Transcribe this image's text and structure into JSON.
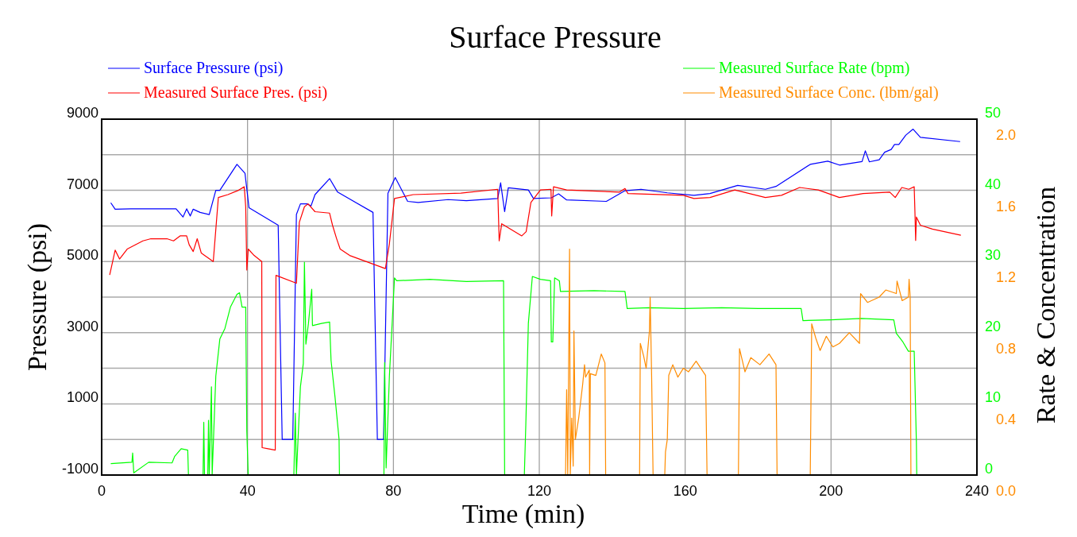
{
  "chart_data": {
    "type": "line",
    "title": "Surface Pressure",
    "xlabel": "Time (min)",
    "ylabel": "Pressure (psi)",
    "y2label": "Rate & Concentration",
    "xlim": [
      0,
      240
    ],
    "xticks": [
      0,
      40,
      80,
      120,
      160,
      200,
      240
    ],
    "ylim": [
      -1000,
      9000
    ],
    "yticks": [
      -1000,
      {
        "value": 0,
        "label": null
      },
      1000,
      {
        "value": 2000,
        "label": null
      },
      3000,
      {
        "value": 4000,
        "label": null
      },
      5000,
      {
        "value": 6000,
        "label": null
      },
      7000,
      {
        "value": 8000,
        "label": null
      },
      9000
    ],
    "y2lim": [
      0,
      50
    ],
    "y2ticks": [
      0,
      10,
      20,
      30,
      40,
      50
    ],
    "y3lim": [
      0,
      2
    ],
    "y3ticks": [
      {
        "value": 0,
        "label": "0.0"
      },
      0.4,
      0.8,
      1.2,
      1.6,
      {
        "value": 2,
        "label": "2.0"
      }
    ],
    "grid": true,
    "legend": "top",
    "line_style": "solid",
    "series": [
      {
        "name": "Surface Pressure (psi)",
        "color": "#0000ff",
        "x": [
          2.5,
          3.7,
          8,
          20.4,
          22.3,
          23.3,
          24.3,
          25.1,
          27,
          29.5,
          31.3,
          32.4,
          37.1,
          39.3,
          40.4,
          48.4,
          49.5,
          52.4,
          53.4,
          54.5,
          56.3,
          57.4,
          58.5,
          62.5,
          64.7,
          74.4,
          75.6,
          77.3,
          78.5,
          80.5,
          83.9,
          86.8,
          95,
          100,
          108.6,
          109.4,
          110.5,
          111.5,
          117,
          118.4,
          123.3,
          125.3,
          127.5,
          138.4,
          143.5,
          147.9,
          155.1,
          162.4,
          166.8,
          174.4,
          182,
          184.9,
          194.3,
          199.1,
          202.3,
          208.5,
          209.4,
          210.5,
          213.2,
          214.7,
          216.5,
          217.4,
          218.6,
          220.5,
          222.5,
          224.5,
          235.4
        ],
        "values": [
          6650,
          6470,
          6480,
          6480,
          6250,
          6480,
          6280,
          6470,
          6380,
          6320,
          7000,
          7000,
          7730,
          7480,
          6510,
          6020,
          0,
          0,
          6320,
          6620,
          6620,
          6560,
          6880,
          7330,
          6950,
          6380,
          0,
          0,
          6920,
          7360,
          6690,
          6660,
          6740,
          6710,
          6770,
          7210,
          6400,
          7070,
          7010,
          6770,
          6790,
          6900,
          6730,
          6690,
          6990,
          7030,
          6930,
          6860,
          6910,
          7140,
          7030,
          7110,
          7730,
          7820,
          7710,
          7810,
          8110,
          7800,
          7860,
          8070,
          8150,
          8290,
          8290,
          8550,
          8720,
          8490,
          8370
        ]
      },
      {
        "name": "Measured Surface Pres. (psi)",
        "color": "#ff0000",
        "x": [
          2.2,
          3.7,
          4.9,
          7,
          11.3,
          13.5,
          17.9,
          19.7,
          21.5,
          23.3,
          24,
          25.1,
          26.2,
          27.3,
          30.6,
          32,
          34.6,
          37.5,
          39.1,
          39.5,
          39.8,
          40.2,
          41.8,
          43.9,
          44,
          45.6,
          47.6,
          47.8,
          53.4,
          54.2,
          55.6,
          56.6,
          58.5,
          62.5,
          63.3,
          64.4,
          65.4,
          68,
          77.8,
          78.9,
          80.3,
          85.4,
          98.5,
          108.6,
          109,
          109.7,
          115.2,
          116.4,
          117.7,
          120.3,
          123.2,
          123.4,
          123.9,
          127.5,
          142,
          143.5,
          144.3,
          159.5,
          162.4,
          166.8,
          173.6,
          182,
          186.4,
          191.4,
          196.5,
          202.3,
          208.8,
          216.1,
          217.6,
          219.4,
          221.3,
          222.8,
          223,
          223.2,
          223.4,
          224.5,
          227.8,
          235.6
        ],
        "values": [
          4620,
          5320,
          5070,
          5350,
          5580,
          5640,
          5640,
          5580,
          5720,
          5720,
          5470,
          5280,
          5640,
          5240,
          5000,
          6800,
          6880,
          7000,
          7100,
          6540,
          4760,
          5350,
          5170,
          5000,
          -230,
          -260,
          -300,
          4610,
          4390,
          6100,
          6540,
          6620,
          6400,
          6360,
          6020,
          5650,
          5350,
          5170,
          4800,
          5500,
          6770,
          6880,
          6920,
          7030,
          5580,
          6060,
          5720,
          5840,
          6660,
          7010,
          7030,
          6280,
          7100,
          7010,
          6950,
          7050,
          6910,
          6860,
          6770,
          6800,
          7010,
          6800,
          6860,
          7080,
          7010,
          6800,
          6910,
          6950,
          6800,
          7080,
          7030,
          7100,
          6400,
          5590,
          6250,
          6020,
          5910,
          5740
        ]
      },
      {
        "name": "Measured Surface Rate (bpm)",
        "color": "#00ff00",
        "axis": "y2",
        "x": [
          2.5,
          8.3,
          8.5,
          8.8,
          12.9,
          19.3,
          20,
          21.8,
          23.6,
          23.8,
          27.8,
          28,
          28.2,
          29.1,
          29.3,
          29.5,
          30.1,
          30.3,
          31.3,
          32.4,
          33.8,
          35.3,
          37.1,
          37.8,
          38.5,
          39.5,
          39.8,
          40.2,
          52.7,
          53.1,
          53.4,
          54.5,
          55.3,
          55.6,
          56,
          56.7,
          57.6,
          57.8,
          60.3,
          62.5,
          62.9,
          64,
          65.1,
          65.2,
          77.4,
          77.6,
          78,
          78.9,
          80.3,
          80.9,
          90,
          100,
          110.2,
          110.5,
          115.9,
          116.3,
          117,
          118.1,
          120.3,
          123.1,
          123.3,
          123.7,
          124.2,
          125.5,
          125.8,
          135,
          143.5,
          144.1,
          150,
          159.5,
          170,
          180,
          191.8,
          192.3,
          200,
          208.3,
          217.2,
          217.9,
          219.7,
          221.2,
          222.8,
          223,
          223.4,
          223.5
        ],
        "values": [
          1.6,
          1.8,
          3.1,
          0.3,
          1.8,
          1.7,
          2.6,
          3.7,
          3.5,
          0,
          0,
          7.4,
          0,
          0,
          7.7,
          0,
          12.4,
          0,
          13.9,
          19.1,
          20.6,
          23.6,
          25.4,
          25.6,
          23.6,
          23.6,
          6.1,
          0,
          0,
          8.7,
          0,
          12.4,
          15.7,
          29.9,
          18.4,
          21.3,
          26.1,
          21,
          21.3,
          21.5,
          16.1,
          10.9,
          5,
          0,
          0,
          15.8,
          1,
          13.9,
          27.7,
          27.3,
          27.5,
          27.2,
          27.3,
          0,
          0,
          7,
          21.3,
          27.9,
          27.5,
          27.3,
          18.7,
          18.7,
          27.7,
          27.3,
          25.8,
          25.9,
          25.8,
          23.4,
          23.5,
          23.4,
          23.5,
          23.4,
          23.4,
          21.7,
          21.8,
          22,
          21.8,
          19.9,
          18.7,
          17.4,
          17.4,
          13.2,
          4.6,
          0
        ]
      },
      {
        "name": "Measured Surface Conc. (lbm/gal)",
        "color": "#ff8c00",
        "axis": "y3",
        "x": [
          127.2,
          127.5,
          127.8,
          128.3,
          128.5,
          128.9,
          129.3,
          129.5,
          129.9,
          130.8,
          131.9,
          132.4,
          132.7,
          133.7,
          133.8,
          134,
          135.5,
          137,
          138,
          138.2,
          147.5,
          147.7,
          148.6,
          149.3,
          150.2,
          150.4,
          150.8,
          151.2,
          154.4,
          154.6,
          155.1,
          155.5,
          156.6,
          158,
          159.5,
          160.9,
          163,
          165.6,
          166,
          174.6,
          174.9,
          176.4,
          178,
          180.5,
          183,
          184.9,
          185.2,
          194.3,
          194.7,
          195.8,
          197,
          198.7,
          200.5,
          202.3,
          205,
          207.8,
          208.1,
          210,
          213.2,
          215,
          217.9,
          218.1,
          219.5,
          221.2,
          221.4,
          221.7,
          221.9
        ],
        "values": [
          0,
          0.48,
          0,
          1.27,
          0,
          0.32,
          0.05,
          0.81,
          0.2,
          0.32,
          0.51,
          0.62,
          0.55,
          0.59,
          0,
          0.57,
          0.56,
          0.68,
          0.63,
          0,
          0,
          0.74,
          0.67,
          0.6,
          0.81,
          1,
          0.56,
          0,
          0,
          0.13,
          0.2,
          0.56,
          0.62,
          0.55,
          0.6,
          0.58,
          0.64,
          0.56,
          0,
          0,
          0.71,
          0.58,
          0.66,
          0.62,
          0.68,
          0.62,
          0,
          0,
          0.85,
          0.77,
          0.7,
          0.78,
          0.72,
          0.74,
          0.8,
          0.74,
          1.02,
          0.97,
          1,
          1.04,
          1.02,
          1.09,
          0.98,
          1,
          1.1,
          1,
          0
        ]
      }
    ]
  }
}
